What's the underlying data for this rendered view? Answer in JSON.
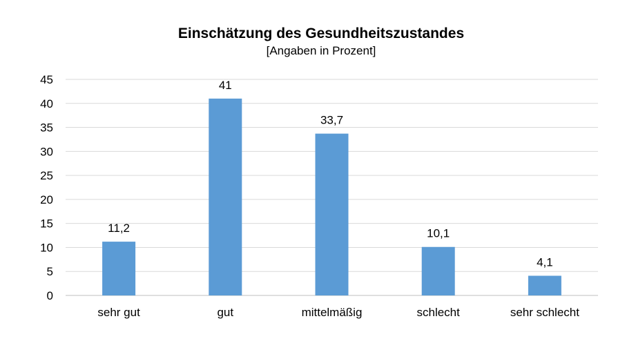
{
  "chart_data": {
    "type": "bar",
    "title": "Einschätzung des Gesundheitszustandes",
    "subtitle": "[Angaben in Prozent]",
    "categories": [
      "sehr gut",
      "gut",
      "mittelmäßig",
      "schlecht",
      "sehr schlecht"
    ],
    "values": [
      11.2,
      41,
      33.7,
      10.1,
      4.1
    ],
    "data_labels": [
      "11,2",
      "41",
      "33,7",
      "10,1",
      "4,1"
    ],
    "ylim": [
      0,
      45
    ],
    "yticks": [
      0,
      5,
      10,
      15,
      20,
      25,
      30,
      35,
      40,
      45
    ],
    "grid": true,
    "legend": "none",
    "bar_color": "#5b9bd5"
  }
}
